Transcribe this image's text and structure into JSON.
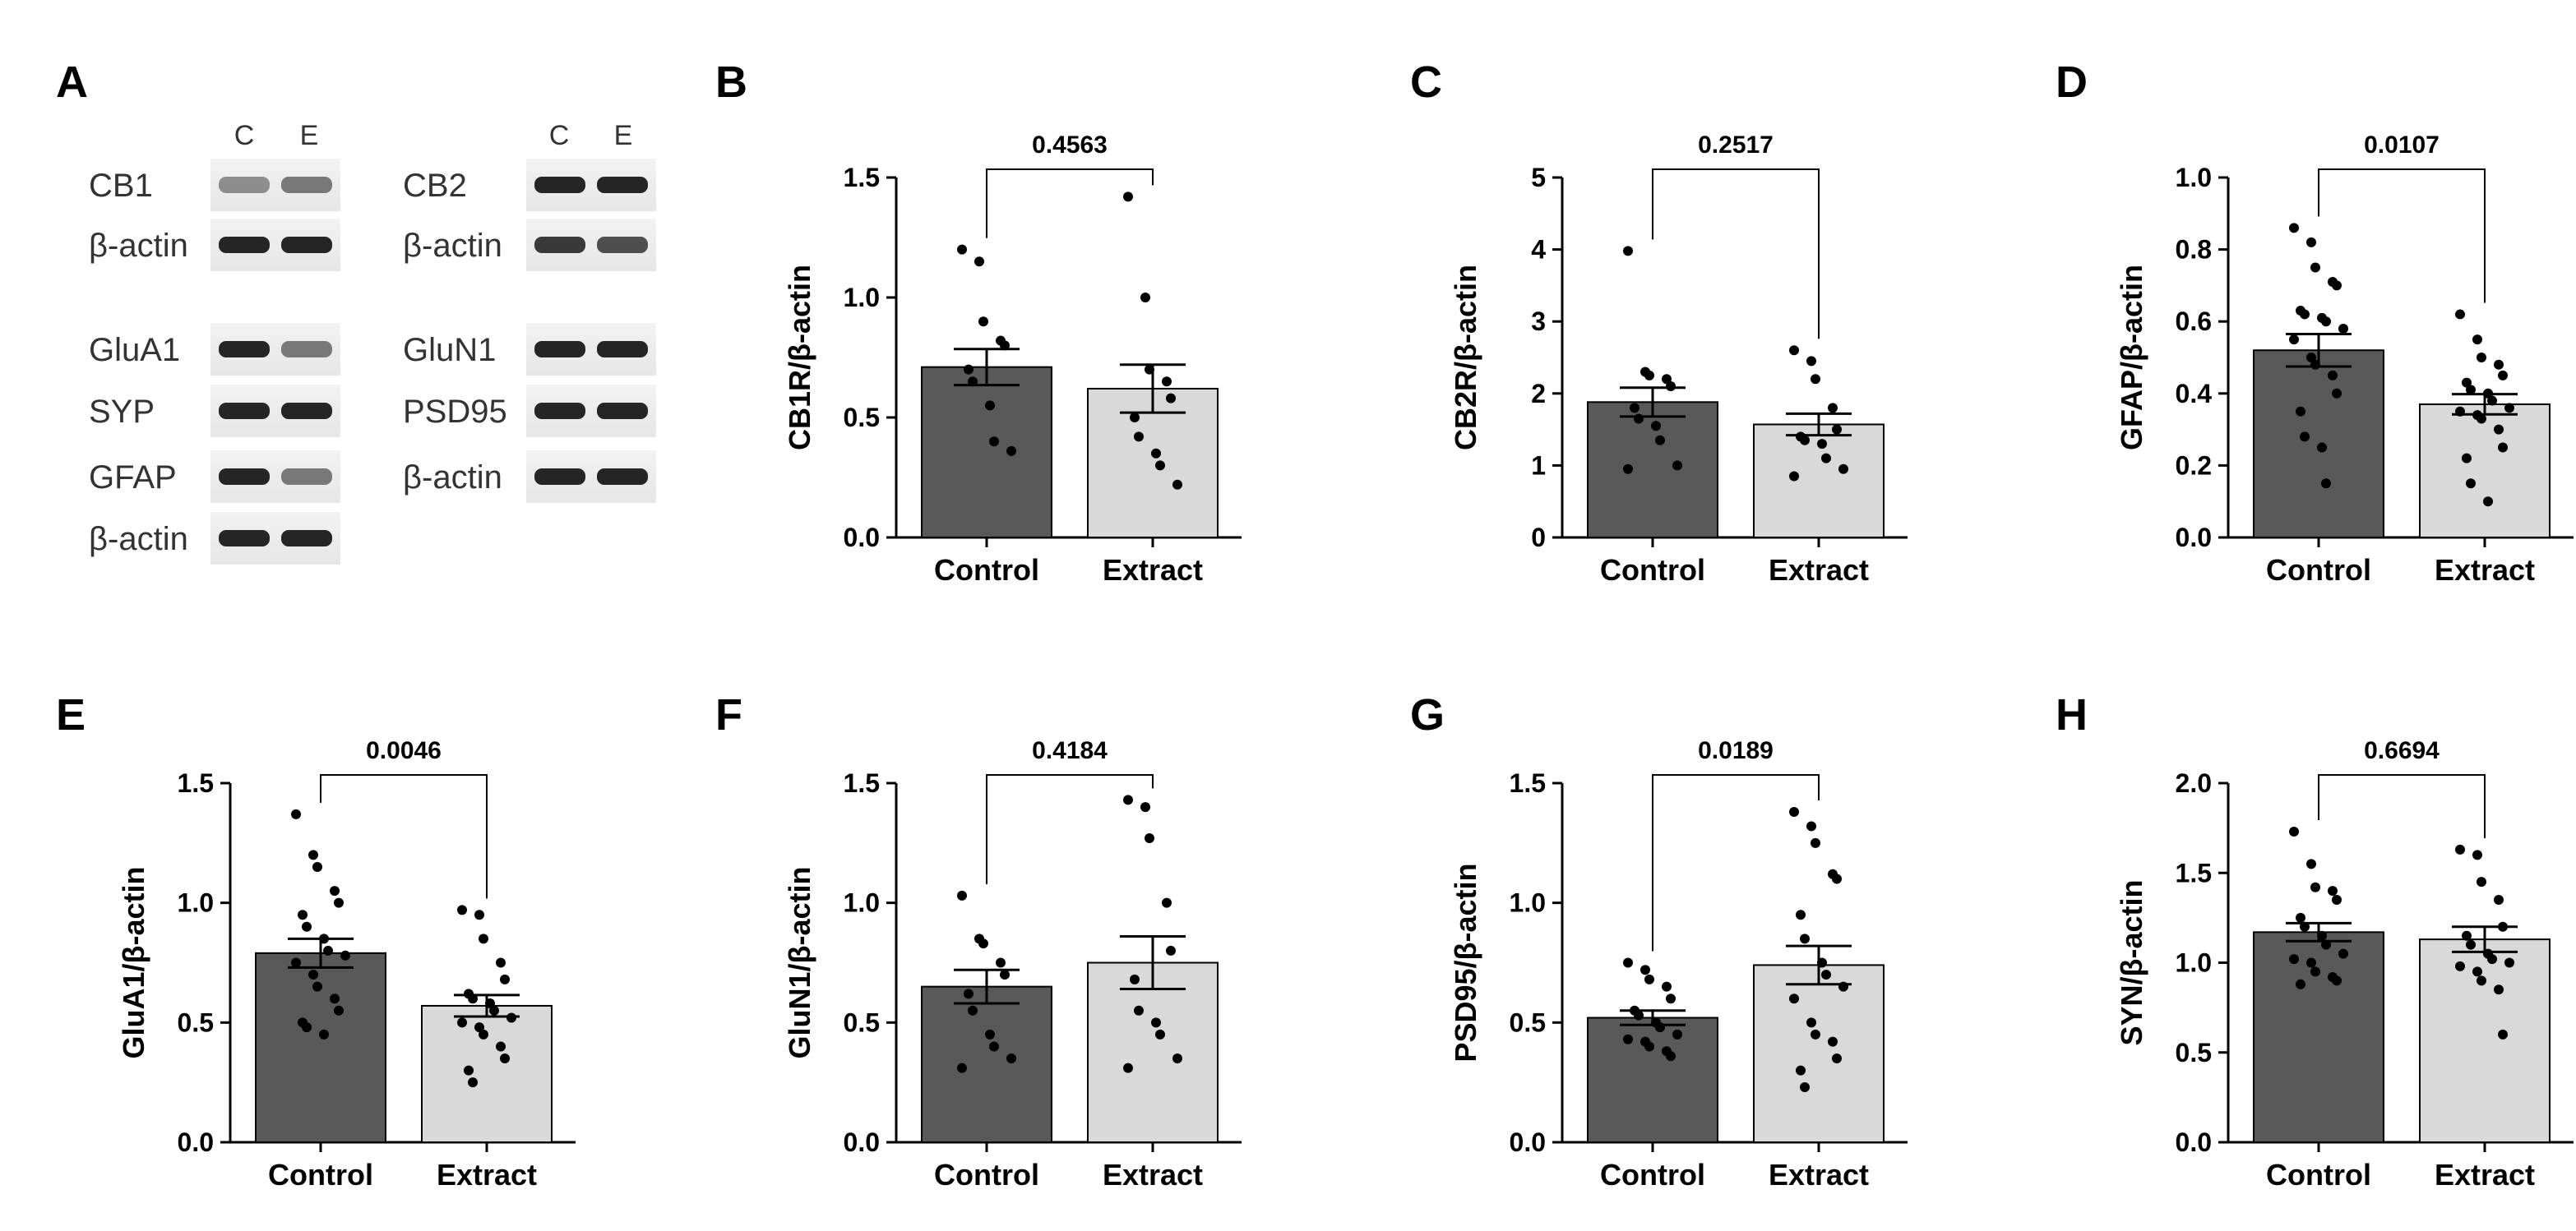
{
  "panel_a": {
    "letter": "A",
    "lane_labels": [
      "C",
      "E"
    ],
    "blots_left": [
      {
        "label": "CB1",
        "style": "faint"
      },
      {
        "label": "β-actin",
        "style": "strong"
      },
      {
        "label": "GluA1",
        "style": "strong-faint"
      },
      {
        "label": "SYP",
        "style": "strong"
      },
      {
        "label": "GFAP",
        "style": "strong-faint"
      },
      {
        "label": "β-actin",
        "style": "strong"
      }
    ],
    "blots_right": [
      {
        "label": "CB2",
        "style": "strong"
      },
      {
        "label": "β-actin",
        "style": "medium"
      },
      {
        "label": "GluN1",
        "style": "strong"
      },
      {
        "label": "PSD95",
        "style": "strong"
      },
      {
        "label": "β-actin",
        "style": "strong"
      }
    ]
  },
  "colors": {
    "control": "#595959",
    "extract": "#d9d9d9",
    "text": "#000000"
  },
  "chart_data": [
    {
      "letter": "B",
      "type": "bar",
      "ylabel": "CB1R/β-actin",
      "categories": [
        "Control",
        "Extract"
      ],
      "ylim": [
        0,
        1.5
      ],
      "ticks": [
        "0.0",
        "0.5",
        "1.0",
        "1.5"
      ],
      "tick_values": [
        0,
        0.5,
        1.0,
        1.5
      ],
      "means": [
        0.71,
        0.62
      ],
      "sem": [
        0.075,
        0.1
      ],
      "p_value": "0.4563",
      "points": [
        [
          1.2,
          1.15,
          0.9,
          0.82,
          0.8,
          0.7,
          0.65,
          0.55,
          0.4,
          0.36
        ],
        [
          1.42,
          1.0,
          0.7,
          0.65,
          0.58,
          0.5,
          0.42,
          0.35,
          0.3,
          0.22
        ]
      ]
    },
    {
      "letter": "C",
      "type": "bar",
      "ylabel": "CB2R/β-actin",
      "categories": [
        "Control",
        "Extract"
      ],
      "ylim": [
        0,
        5
      ],
      "ticks": [
        "0",
        "1",
        "2",
        "3",
        "4",
        "5"
      ],
      "tick_values": [
        0,
        1,
        2,
        3,
        4,
        5
      ],
      "means": [
        1.88,
        1.57
      ],
      "sem": [
        0.2,
        0.15
      ],
      "p_value": "0.2517",
      "points": [
        [
          3.98,
          2.3,
          2.25,
          2.2,
          2.1,
          1.8,
          1.65,
          1.55,
          1.35,
          1.0,
          0.95
        ],
        [
          2.6,
          2.45,
          2.2,
          1.8,
          1.5,
          1.4,
          1.35,
          1.3,
          1.1,
          0.95,
          0.85
        ]
      ]
    },
    {
      "letter": "D",
      "type": "bar",
      "ylabel": "GFAP/β-actin",
      "categories": [
        "Control",
        "Extract"
      ],
      "ylim": [
        0,
        1.0
      ],
      "ticks": [
        "0.0",
        "0.2",
        "0.4",
        "0.6",
        "0.8",
        "1.0"
      ],
      "tick_values": [
        0,
        0.2,
        0.4,
        0.6,
        0.8,
        1.0
      ],
      "means": [
        0.52,
        0.37
      ],
      "sem": [
        0.045,
        0.028
      ],
      "p_value": "0.0107",
      "points": [
        [
          0.86,
          0.82,
          0.75,
          0.71,
          0.7,
          0.63,
          0.62,
          0.61,
          0.6,
          0.58,
          0.55,
          0.5,
          0.48,
          0.45,
          0.4,
          0.35,
          0.28,
          0.25,
          0.15
        ],
        [
          0.62,
          0.55,
          0.5,
          0.48,
          0.45,
          0.43,
          0.41,
          0.4,
          0.38,
          0.36,
          0.35,
          0.34,
          0.33,
          0.3,
          0.25,
          0.22,
          0.15,
          0.1
        ]
      ]
    },
    {
      "letter": "E",
      "type": "bar",
      "ylabel": "GluA1/β-actin",
      "categories": [
        "Control",
        "Extract"
      ],
      "ylim": [
        0,
        1.5
      ],
      "ticks": [
        "0.0",
        "0.5",
        "1.0",
        "1.5"
      ],
      "tick_values": [
        0,
        0.5,
        1.0,
        1.5
      ],
      "means": [
        0.79,
        0.57
      ],
      "sem": [
        0.06,
        0.045
      ],
      "p_value": "0.0046",
      "points": [
        [
          1.37,
          1.2,
          1.15,
          1.05,
          1.0,
          0.95,
          0.9,
          0.85,
          0.8,
          0.78,
          0.75,
          0.7,
          0.65,
          0.6,
          0.55,
          0.5,
          0.48,
          0.45
        ],
        [
          0.97,
          0.95,
          0.85,
          0.75,
          0.68,
          0.62,
          0.6,
          0.58,
          0.55,
          0.52,
          0.5,
          0.48,
          0.45,
          0.4,
          0.35,
          0.3,
          0.25
        ]
      ]
    },
    {
      "letter": "F",
      "type": "bar",
      "ylabel": "GluN1/β-actin",
      "categories": [
        "Control",
        "Extract"
      ],
      "ylim": [
        0,
        1.5
      ],
      "ticks": [
        "0.0",
        "0.5",
        "1.0",
        "1.5"
      ],
      "tick_values": [
        0,
        0.5,
        1.0,
        1.5
      ],
      "means": [
        0.65,
        0.75
      ],
      "sem": [
        0.07,
        0.11
      ],
      "p_value": "0.4184",
      "points": [
        [
          1.03,
          0.85,
          0.83,
          0.75,
          0.7,
          0.62,
          0.55,
          0.45,
          0.4,
          0.35,
          0.31
        ],
        [
          1.43,
          1.4,
          1.27,
          1.0,
          0.8,
          0.68,
          0.55,
          0.5,
          0.45,
          0.35,
          0.31
        ]
      ]
    },
    {
      "letter": "G",
      "type": "bar",
      "ylabel": "PSD95/β-actin",
      "categories": [
        "Control",
        "Extract"
      ],
      "ylim": [
        0,
        1.5
      ],
      "ticks": [
        "0.0",
        "0.5",
        "1.0",
        "1.5"
      ],
      "tick_values": [
        0,
        0.5,
        1.0,
        1.5
      ],
      "means": [
        0.52,
        0.74
      ],
      "sem": [
        0.03,
        0.08
      ],
      "p_value": "0.0189",
      "points": [
        [
          0.75,
          0.72,
          0.68,
          0.65,
          0.6,
          0.55,
          0.53,
          0.5,
          0.48,
          0.45,
          0.43,
          0.42,
          0.4,
          0.38,
          0.36
        ],
        [
          1.38,
          1.32,
          1.25,
          1.12,
          1.1,
          0.95,
          0.85,
          0.75,
          0.7,
          0.65,
          0.6,
          0.5,
          0.45,
          0.42,
          0.35,
          0.3,
          0.23
        ]
      ]
    },
    {
      "letter": "H",
      "type": "bar",
      "ylabel": "SYN/β-actin",
      "categories": [
        "Control",
        "Extract"
      ],
      "ylim": [
        0,
        2.0
      ],
      "ticks": [
        "0.0",
        "0.5",
        "1.0",
        "1.5",
        "2.0"
      ],
      "tick_values": [
        0,
        0.5,
        1.0,
        1.5,
        2.0
      ],
      "means": [
        1.17,
        1.13
      ],
      "sem": [
        0.05,
        0.07
      ],
      "p_value": "0.6694",
      "points": [
        [
          1.73,
          1.55,
          1.42,
          1.4,
          1.35,
          1.25,
          1.2,
          1.15,
          1.1,
          1.05,
          1.02,
          1.0,
          0.95,
          0.92,
          0.9,
          0.88
        ],
        [
          1.63,
          1.6,
          1.45,
          1.35,
          1.2,
          1.15,
          1.1,
          1.05,
          1.02,
          1.0,
          0.98,
          0.95,
          0.9,
          0.85,
          0.6
        ]
      ]
    }
  ]
}
